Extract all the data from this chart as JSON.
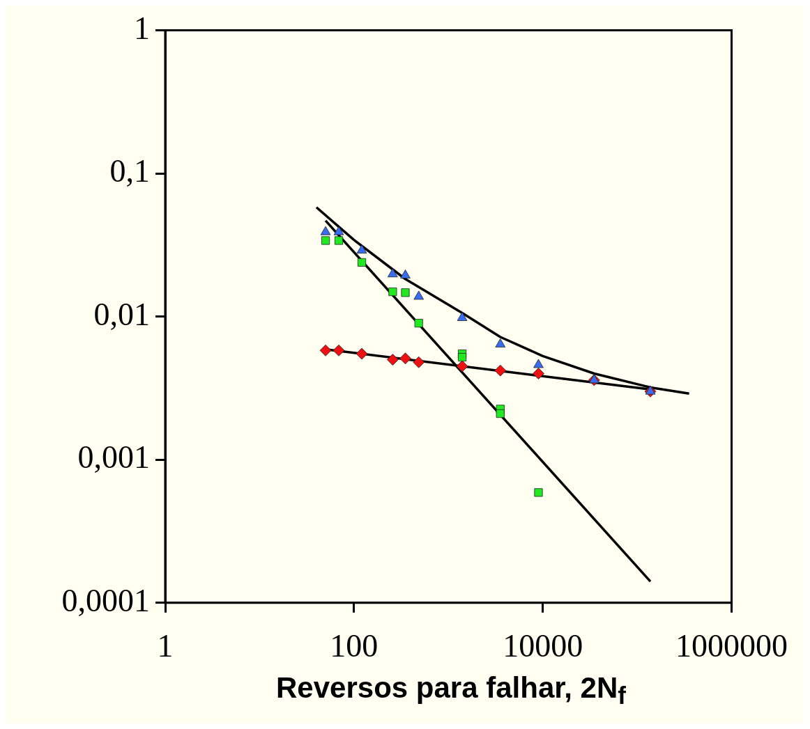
{
  "chart_data": {
    "type": "scatter",
    "xlabel": "Reversos para falhar, 2N$_{f}$",
    "log": "xy",
    "xlim": [
      1,
      1000000
    ],
    "ylim": [
      0.0001,
      1
    ],
    "xticks": [
      1,
      100,
      10000,
      1000000
    ],
    "yticks": [
      {
        "value": 0.0001,
        "label": "0,0001"
      },
      {
        "value": 0.001,
        "label": "0,001"
      },
      {
        "value": 0.01,
        "label": "0,01"
      },
      {
        "value": 0.1,
        "label": "0,1"
      },
      {
        "value": 1,
        "label": "1"
      }
    ],
    "grid": false,
    "legend": false,
    "series": [
      {
        "marker": "triangle",
        "color": "#3a6cf0",
        "x": [
          50,
          69,
          121,
          257,
          350,
          485,
          1400,
          3550,
          9000,
          35000,
          138000
        ],
        "values": [
          0.039,
          0.039,
          0.029,
          0.0198,
          0.0194,
          0.0138,
          0.0098,
          0.0064,
          0.0046,
          0.0036,
          0.003
        ]
      },
      {
        "marker": "square",
        "color": "#22e822",
        "x": [
          50,
          69,
          121,
          257,
          350,
          485,
          1400,
          1400,
          3550,
          3550,
          9000
        ],
        "values": [
          0.034,
          0.034,
          0.0239,
          0.0149,
          0.0147,
          0.009,
          0.0055,
          0.0052,
          0.00226,
          0.0021,
          0.00059
        ]
      },
      {
        "marker": "diamond",
        "color": "#ee1111",
        "x": [
          50,
          69,
          121,
          257,
          350,
          485,
          1400,
          3550,
          9000,
          35000,
          138000
        ],
        "values": [
          0.0058,
          0.0058,
          0.0055,
          0.005,
          0.0051,
          0.0048,
          0.0045,
          0.0042,
          0.004,
          0.0036,
          0.003
        ]
      },
      {
        "type": "line",
        "marker": "none",
        "color": "#000000",
        "x": [
          50,
          138000
        ],
        "values": [
          0.0468,
          0.000141
        ]
      },
      {
        "type": "line",
        "marker": "none",
        "color": "#000000",
        "x": [
          50,
          138000
        ],
        "values": [
          0.0059,
          0.0031
        ]
      },
      {
        "type": "line",
        "marker": "none",
        "color": "#000000",
        "x": [
          40,
          100,
          350,
          1400,
          3550,
          10000,
          35000,
          138000,
          355000
        ],
        "values": [
          0.058,
          0.0343,
          0.0183,
          0.0106,
          0.0072,
          0.0053,
          0.004,
          0.0032,
          0.0029
        ]
      }
    ]
  }
}
